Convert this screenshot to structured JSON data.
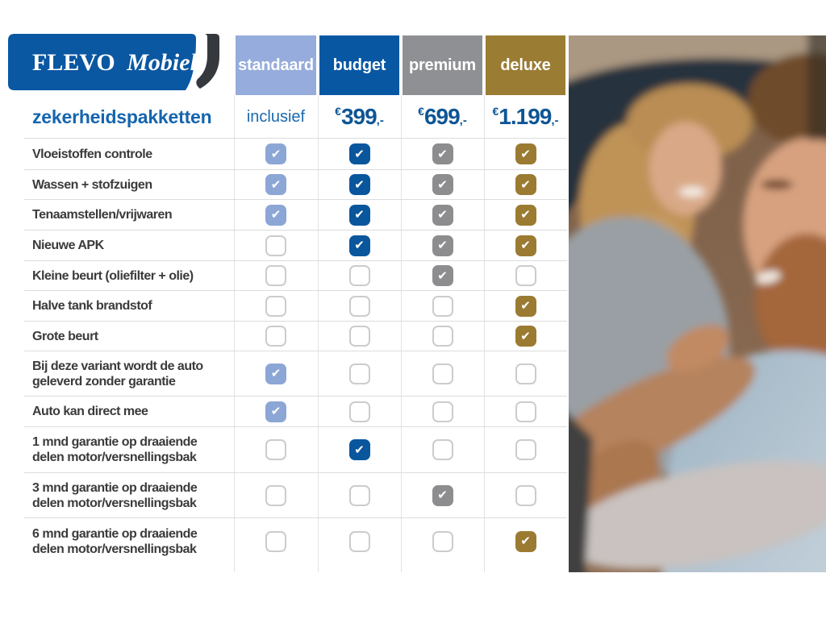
{
  "brand": {
    "name_primary": "FLEVO",
    "name_secondary": "Mobiel",
    "block_color": "#0A57A2",
    "swoosh_color": "#35383D"
  },
  "title": "zekerheidspakketten",
  "title_color": "#1565AE",
  "inclusief_color": "#1A69B0",
  "price_color": "#0E5695",
  "icons": {
    "check": "✔"
  },
  "columns": [
    {
      "label": "standaard",
      "header_color": "#95ACDC",
      "check_color": "#8CA6D6",
      "price": "inclusief"
    },
    {
      "label": "budget",
      "header_color": "#0857A2",
      "check_color": "#0A569C",
      "price_euro": "€",
      "price_amount": "399",
      "price_suffix": ",-"
    },
    {
      "label": "premium",
      "header_color": "#8F9094",
      "check_color": "#8D8D8F",
      "price_euro": "€",
      "price_amount": "699",
      "price_suffix": ",-"
    },
    {
      "label": "deluxe",
      "header_color": "#9A7C33",
      "check_color": "#9B7B31",
      "price_euro": "€",
      "price_amount": "1.199",
      "price_suffix": ",-"
    }
  ],
  "rows": [
    {
      "label": "Vloeistoffen controle",
      "checks": [
        true,
        true,
        true,
        true
      ]
    },
    {
      "label": "Wassen + stofzuigen",
      "checks": [
        true,
        true,
        true,
        true
      ]
    },
    {
      "label": "Tenaamstellen/vrijwaren",
      "checks": [
        true,
        true,
        true,
        true
      ]
    },
    {
      "label": "Nieuwe APK",
      "checks": [
        false,
        true,
        true,
        true
      ]
    },
    {
      "label": "Kleine beurt (oliefilter + olie)",
      "checks": [
        false,
        false,
        true,
        false
      ]
    },
    {
      "label": "Halve tank brandstof",
      "checks": [
        false,
        false,
        false,
        true
      ]
    },
    {
      "label": "Grote beurt",
      "checks": [
        false,
        false,
        false,
        true
      ]
    },
    {
      "label": "Bij deze variant wordt de auto\ngeleverd zonder garantie",
      "checks": [
        true,
        false,
        false,
        false
      ]
    },
    {
      "label": "Auto kan direct mee",
      "checks": [
        true,
        false,
        false,
        false
      ]
    },
    {
      "label": "1 mnd garantie op draaiende\ndelen motor/versnellingsbak",
      "checks": [
        false,
        true,
        false,
        false
      ]
    },
    {
      "label": "3 mnd garantie op draaiende\ndelen motor/versnellingsbak",
      "checks": [
        false,
        false,
        true,
        false
      ]
    },
    {
      "label": "6 mnd garantie op draaiende\ndelen motor/versnellingsbak",
      "checks": [
        false,
        false,
        false,
        true
      ]
    }
  ],
  "photo": {
    "description": "couple smiling inside a car"
  }
}
